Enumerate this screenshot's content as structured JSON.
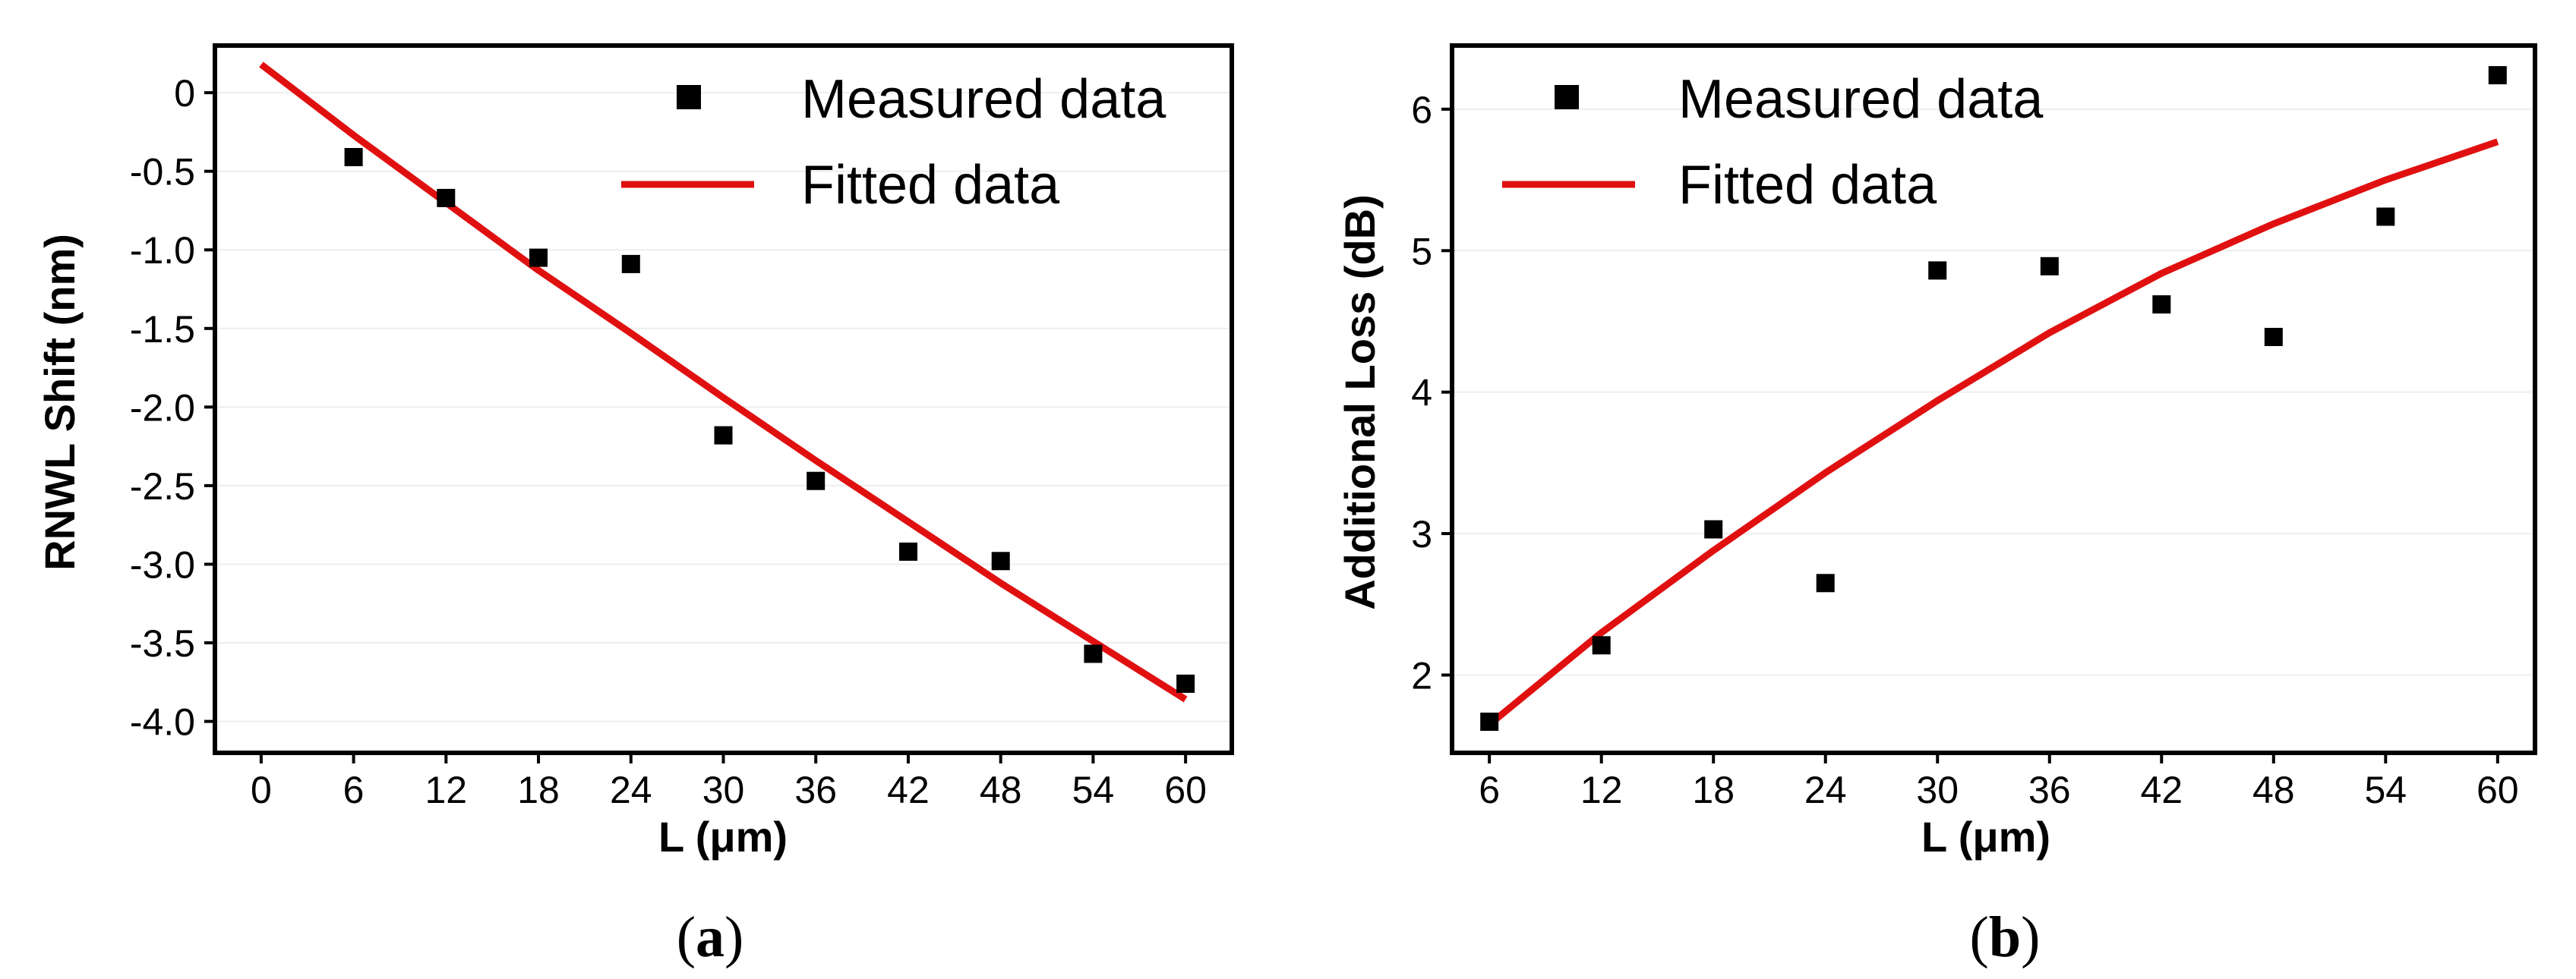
{
  "colors": {
    "measured": "#000000",
    "fitted": "#e01010",
    "grid": "#eeeeee",
    "frame": "#000000"
  },
  "chart_data": [
    {
      "type": "scatter",
      "panel": "(a)",
      "panel_letter": "a",
      "xlabel": "L (μm)",
      "ylabel": "RNWL Shift (nm)",
      "xlim": [
        -3,
        63
      ],
      "ylim": [
        -4.2,
        0.3
      ],
      "xticks": [
        0,
        6,
        12,
        18,
        24,
        30,
        36,
        42,
        48,
        54,
        60
      ],
      "xtick_labels": [
        "0",
        "6",
        "12",
        "18",
        "24",
        "30",
        "36",
        "42",
        "48",
        "54",
        "60"
      ],
      "yticks": [
        0,
        -0.5,
        -1.0,
        -1.5,
        -2.0,
        -2.5,
        -3.0,
        -3.5,
        -4.0
      ],
      "ytick_labels": [
        "0",
        "-0.5",
        "-1.0",
        "-1.5",
        "-2.0",
        "-2.5",
        "-3.0",
        "-3.5",
        "-4.0"
      ],
      "grid": true,
      "legend_placement": "top-right",
      "series": [
        {
          "name": "Measured data",
          "kind": "markers",
          "x": [
            6,
            12,
            18,
            24,
            30,
            36,
            42,
            48,
            54,
            60
          ],
          "y": [
            -0.41,
            -0.67,
            -1.05,
            -1.09,
            -2.18,
            -2.47,
            -2.92,
            -2.98,
            -3.57,
            -3.76
          ]
        },
        {
          "name": "Fitted data",
          "kind": "line",
          "x": [
            0,
            6,
            12,
            18,
            24,
            30,
            36,
            42,
            48,
            54,
            60
          ],
          "y": [
            0.18,
            -0.27,
            -0.7,
            -1.13,
            -1.53,
            -1.94,
            -2.34,
            -2.73,
            -3.12,
            -3.49,
            -3.86
          ]
        }
      ]
    },
    {
      "type": "scatter",
      "panel": "(b)",
      "panel_letter": "b",
      "xlabel": "L (μm)",
      "ylabel": "Additional Loss (dB)",
      "xlim": [
        4,
        62
      ],
      "ylim": [
        1.45,
        6.45
      ],
      "xticks": [
        6,
        12,
        18,
        24,
        30,
        36,
        42,
        48,
        54,
        60
      ],
      "xtick_labels": [
        "6",
        "12",
        "18",
        "24",
        "30",
        "36",
        "42",
        "48",
        "54",
        "60"
      ],
      "yticks": [
        2,
        3,
        4,
        5,
        6
      ],
      "ytick_labels": [
        "2",
        "3",
        "4",
        "5",
        "6"
      ],
      "grid": true,
      "legend_placement": "top-left",
      "series": [
        {
          "name": "Measured data",
          "kind": "markers",
          "x": [
            6,
            12,
            18,
            24,
            30,
            36,
            42,
            48,
            54,
            60
          ],
          "y": [
            1.67,
            2.21,
            3.03,
            2.65,
            4.86,
            4.89,
            4.62,
            4.39,
            5.24,
            6.24
          ]
        },
        {
          "name": "Fitted data",
          "kind": "line",
          "x": [
            6,
            12,
            18,
            24,
            30,
            36,
            42,
            48,
            54,
            60
          ],
          "y": [
            1.65,
            2.3,
            2.88,
            3.43,
            3.94,
            4.42,
            4.84,
            5.19,
            5.5,
            5.77
          ]
        }
      ]
    }
  ]
}
